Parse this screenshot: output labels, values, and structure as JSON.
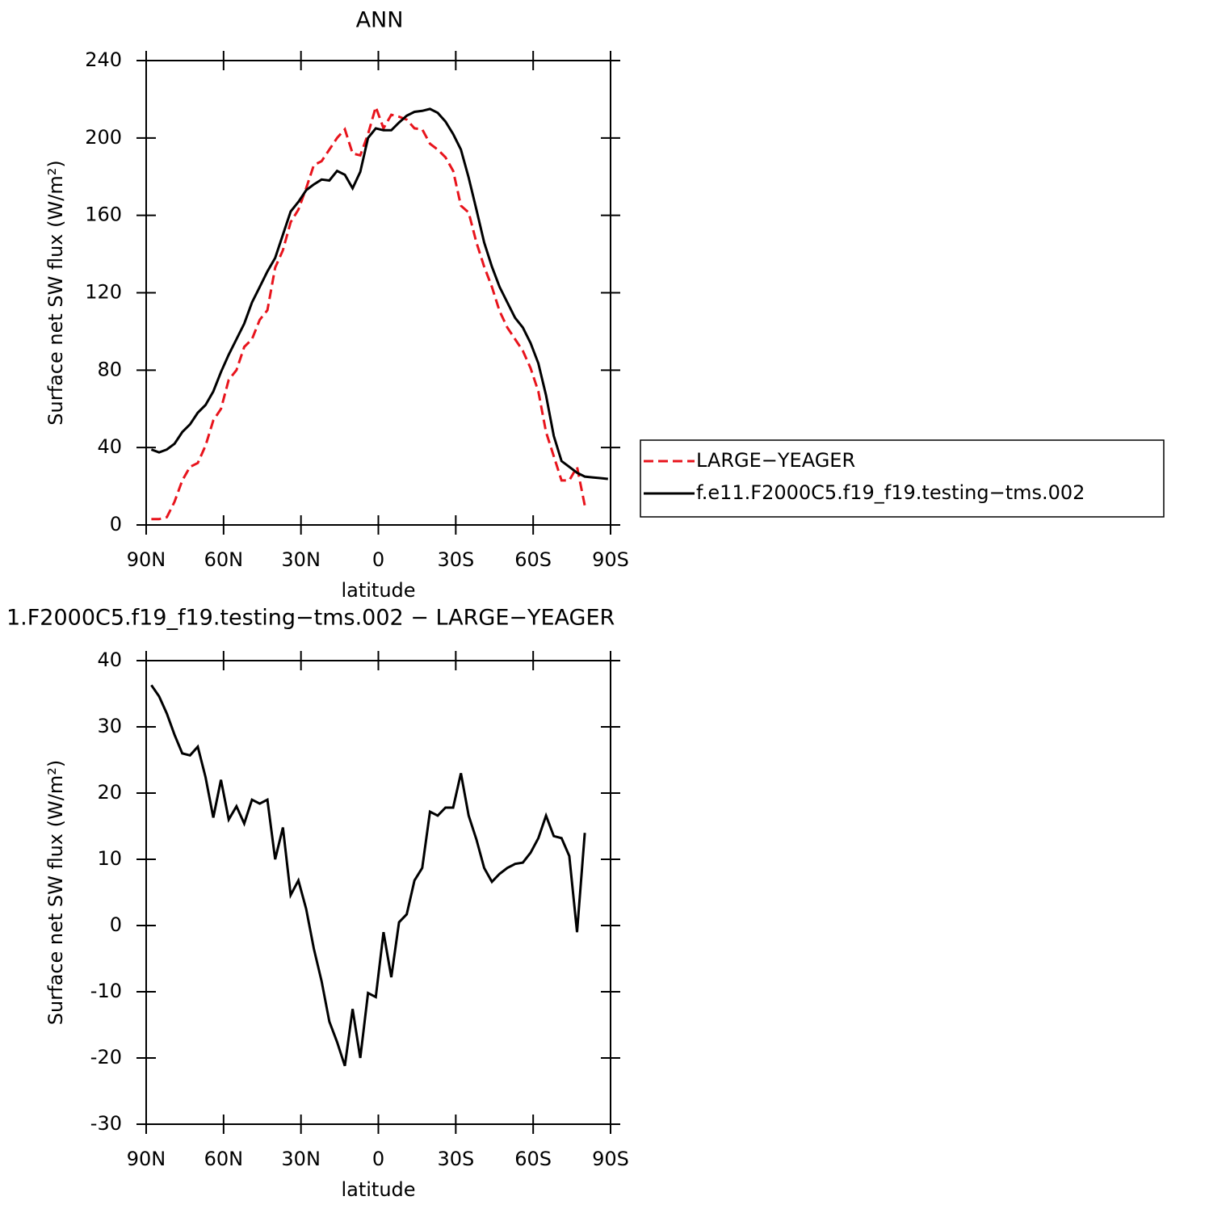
{
  "chart_data": [
    {
      "type": "line",
      "title": "ANN",
      "x_label": "latitude",
      "y_label": "Surface net SW flux (W/m²)",
      "x": [
        88,
        85,
        82,
        79,
        76,
        73,
        70,
        67,
        64,
        61,
        58,
        55,
        52,
        49,
        46,
        43,
        40,
        37,
        34,
        31,
        28,
        25,
        22,
        19,
        16,
        13,
        10,
        7,
        4,
        1,
        -2,
        -5,
        -8,
        -11,
        -14,
        -17,
        -20,
        -23,
        -26,
        -29,
        -32,
        -35,
        -38,
        -41,
        -44,
        -47,
        -50,
        -53,
        -56,
        -59,
        -62,
        -65,
        -68,
        -71,
        -74,
        -77,
        -80,
        -83,
        -86,
        -89
      ],
      "series": [
        {
          "name": "LARGE−YEAGER",
          "color": "#e8141c",
          "linestyle": "dashed",
          "values": [
            3,
            3,
            4,
            12,
            23,
            30,
            32,
            41,
            54,
            60,
            75,
            80,
            92,
            96,
            106,
            111,
            133,
            142,
            156.5,
            163,
            174,
            186,
            188,
            194,
            200,
            204.5,
            192,
            191,
            202,
            216,
            205,
            212,
            211,
            209.5,
            205,
            204.5,
            197,
            194,
            190,
            183,
            165,
            161.5,
            146,
            133.5,
            123,
            110.5,
            102,
            96,
            90,
            81,
            69,
            48,
            35.5,
            23,
            23,
            30,
            10,
            null,
            null,
            null
          ]
        },
        {
          "name": "f.e11.F2000C5.f19_f19.testing−tms.002",
          "color": "#000000",
          "linestyle": "solid",
          "values": [
            39,
            37.5,
            39,
            42,
            48,
            52,
            58,
            62,
            69,
            79,
            88,
            96,
            104,
            115,
            123,
            131,
            138,
            150,
            162,
            167,
            173,
            176,
            178.5,
            178,
            183,
            181,
            174,
            182.5,
            200,
            205,
            204,
            204,
            208,
            211.5,
            213.5,
            214,
            215,
            213,
            208.5,
            202,
            194,
            179.5,
            163,
            146,
            133.5,
            123,
            115,
            107,
            102,
            94,
            83.5,
            67,
            46,
            33,
            30,
            27,
            25,
            24.6,
            24.2,
            23.8
          ]
        }
      ],
      "xlim": [
        90,
        -90
      ],
      "xticks": [
        {
          "value": 90,
          "label": "90N"
        },
        {
          "value": 60,
          "label": "60N"
        },
        {
          "value": 30,
          "label": "30N"
        },
        0,
        {
          "value": -30,
          "label": "30S"
        },
        {
          "value": -60,
          "label": "60S"
        },
        {
          "value": -90,
          "label": "90S"
        }
      ],
      "ylim": [
        0,
        240
      ],
      "yticks": [
        0,
        40,
        80,
        120,
        160,
        200,
        240
      ],
      "legend": "outside right"
    },
    {
      "type": "line",
      "title": "1.F2000C5.f19_f19.testing−tms.002 − LARGE−YEAGER",
      "x_label": "latitude",
      "y_label": "Surface net SW flux (W/m²)",
      "x": [
        88,
        85,
        82,
        79,
        76,
        73,
        70,
        67,
        64,
        61,
        58,
        55,
        52,
        49,
        46,
        43,
        40,
        37,
        34,
        31,
        28,
        25,
        22,
        19,
        16,
        13,
        10,
        7,
        4,
        1,
        -2,
        -5,
        -8,
        -11,
        -14,
        -17,
        -20,
        -23,
        -26,
        -29,
        -32,
        -35,
        -38,
        -41,
        -44,
        -47,
        -50,
        -53,
        -56,
        -59,
        -62,
        -65,
        -68,
        -71,
        -74,
        -77,
        -80,
        -83,
        -86,
        -89
      ],
      "series": [
        {
          "color": "#000000",
          "linestyle": "solid",
          "values": [
            36.3,
            34.6,
            32,
            28.8,
            26,
            25.7,
            27,
            22.4,
            16.3,
            22,
            16,
            18,
            15.4,
            19,
            18.4,
            19,
            10,
            14.8,
            4.6,
            6.8,
            2.5,
            -3.5,
            -8.4,
            -14.5,
            -17.6,
            -21.2,
            -12.6,
            -20,
            -10.2,
            -10.8,
            -1,
            -7.8,
            0.5,
            1.7,
            6.8,
            8.7,
            17.2,
            16.6,
            17.8,
            17.8,
            23,
            16.6,
            13,
            8.7,
            6.6,
            7.8,
            8.7,
            9.3,
            9.5,
            11,
            13.2,
            16.6,
            13.5,
            13.2,
            10.5,
            -1,
            14,
            null,
            null,
            null
          ]
        }
      ],
      "xlim": [
        90,
        -90
      ],
      "xticks": [
        {
          "value": 90,
          "label": "90N"
        },
        {
          "value": 60,
          "label": "60N"
        },
        {
          "value": 30,
          "label": "30N"
        },
        0,
        {
          "value": -30,
          "label": "30S"
        },
        {
          "value": -60,
          "label": "60S"
        },
        {
          "value": -90,
          "label": "90S"
        }
      ],
      "ylim": [
        -30,
        40
      ],
      "yticks": [
        -30,
        -20,
        -10,
        0,
        10,
        20,
        30,
        40
      ]
    }
  ]
}
